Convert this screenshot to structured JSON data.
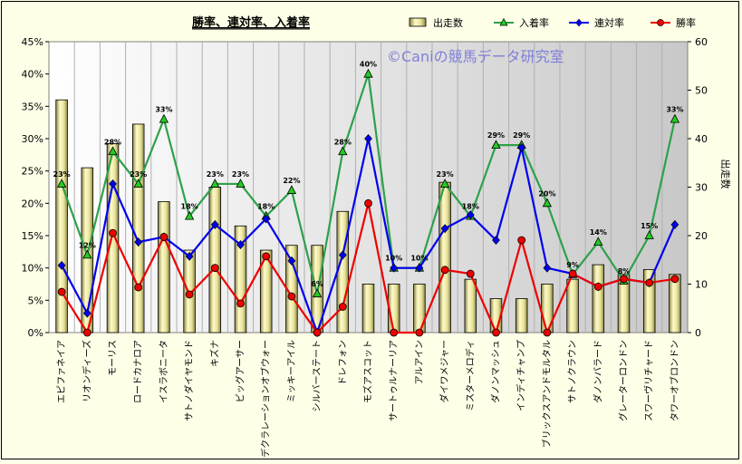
{
  "chart_data": {
    "type": "bar",
    "title": "勝率、連対率、入着率",
    "watermark": "©Caniの競馬データ研究室",
    "y2label": "出走数",
    "ylim": [
      0,
      45
    ],
    "y2lim": [
      0,
      60
    ],
    "yticks": [
      "0%",
      "5%",
      "10%",
      "15%",
      "20%",
      "25%",
      "30%",
      "35%",
      "40%",
      "45%"
    ],
    "y2ticks": [
      "0",
      "10",
      "20",
      "30",
      "40",
      "50",
      "60"
    ],
    "categories": [
      "エピファネイア",
      "リオンディーズ",
      "モーリス",
      "ロードカナロア",
      "イスラボニータ",
      "サトノダイヤモンド",
      "キズナ",
      "ビッグアーサー",
      "デクラレーションオブウォー",
      "ミッキーアイル",
      "シルバーステート",
      "ドレフォン",
      "モズアスコット",
      "サートゥルナーリア",
      "アルアイン",
      "ダイワメジャー",
      "ミスターメロディ",
      "ダノンマッシュ",
      "インディチャンプ",
      "ブリックスアンドモルタル",
      "サトノクラウン",
      "ダノンバラード",
      "グレーターロンドン",
      "スワーヴリチャード",
      "タワーオブロンドン"
    ],
    "series": [
      {
        "name": "出走数",
        "type": "bar",
        "axis": "right",
        "color": "#e8e4a0",
        "values": [
          48,
          34,
          39,
          43,
          27,
          17,
          30,
          22,
          17,
          18,
          18,
          25,
          10,
          10,
          10,
          31,
          11,
          7,
          7,
          10,
          11,
          14,
          12,
          13,
          12
        ]
      },
      {
        "name": "入着率",
        "type": "line",
        "axis": "left",
        "marker": "triangle",
        "color": "#2ea04a",
        "markerColor": "#22cc22",
        "values": [
          23,
          12,
          28,
          23,
          33,
          18,
          23,
          23,
          18,
          22,
          6,
          28,
          40,
          10,
          10,
          23,
          18,
          29,
          29,
          20,
          9,
          14,
          8,
          15,
          33
        ]
      },
      {
        "name": "連対率",
        "type": "line",
        "axis": "left",
        "marker": "diamond",
        "color": "#0000ee",
        "markerColor": "#0000ee",
        "values": [
          10.4,
          3,
          23,
          14,
          14.8,
          11.8,
          16.7,
          13.6,
          17.6,
          11.1,
          0,
          12,
          30,
          10,
          10,
          16.1,
          18.2,
          14.3,
          28.6,
          10,
          9.1,
          7.1,
          8.3,
          7.7,
          16.7
        ]
      },
      {
        "name": "勝率",
        "type": "line",
        "axis": "left",
        "marker": "circle",
        "color": "#ee0000",
        "markerColor": "#ee0000",
        "values": [
          6.3,
          0,
          15.4,
          7,
          14.8,
          5.9,
          10,
          4.5,
          11.8,
          5.6,
          0,
          4,
          20,
          0,
          0,
          9.7,
          9.1,
          0,
          14.3,
          0,
          9.1,
          7.1,
          8.3,
          7.7,
          8.3
        ]
      }
    ],
    "data_labels": {
      "series": "入着率",
      "values": [
        "23%",
        "12%",
        "28%",
        "23%",
        "33%",
        "18%",
        "23%",
        "23%",
        "18%",
        "22%",
        "6%",
        "28%",
        "40%",
        "10%",
        "10%",
        "23%",
        "18%",
        "29%",
        "29%",
        "20%",
        "9%",
        "14%",
        "8%",
        "15%",
        "33%"
      ]
    },
    "legend": {
      "position": "top-right",
      "entries": [
        "出走数",
        "入着率",
        "連対率",
        "勝率"
      ]
    },
    "grid": "vertical-x"
  }
}
